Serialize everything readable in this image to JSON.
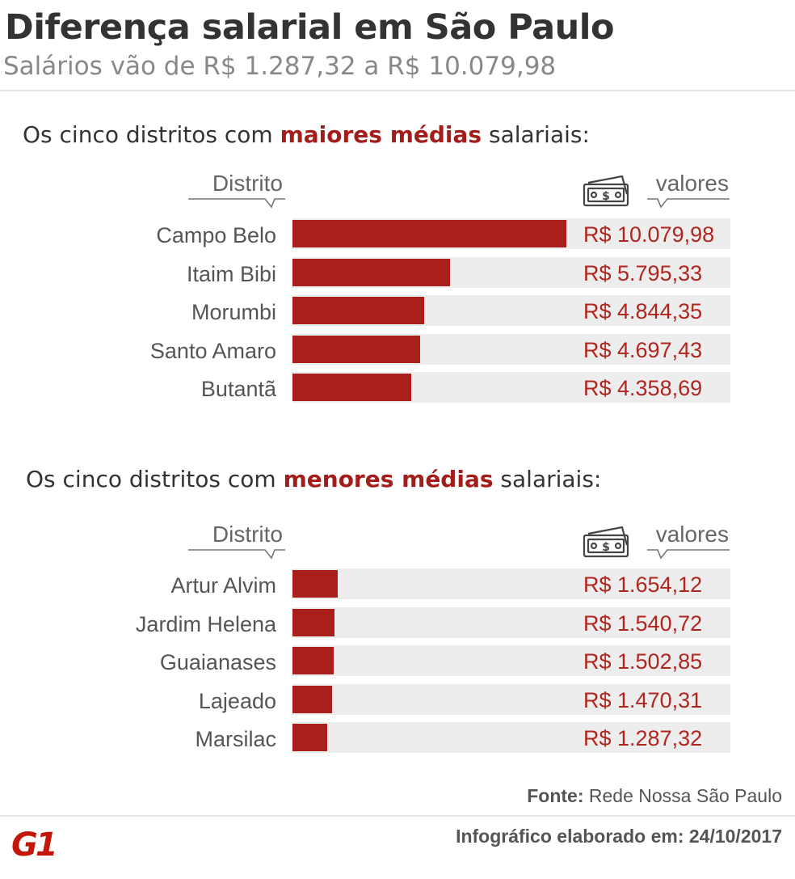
{
  "header": {
    "title": "Diferença salarial em São Paulo",
    "subtitle": "Salários vão de R$ 1.287,32 a R$ 10.079,98"
  },
  "colors": {
    "accent": "#a81f1b",
    "row_background": "#ededed",
    "value_text": "#b0261f"
  },
  "chart_data": [
    {
      "type": "bar",
      "orientation": "horizontal",
      "title_prefix": "Os cinco distritos com",
      "title_highlight": "maiores médias",
      "title_suffix": "salariais:",
      "category_header": "Distrito",
      "value_header": "valores",
      "value_header_icon": "money-bill-icon",
      "xlim": [
        0,
        10079.98
      ],
      "categories": [
        "Campo Belo",
        "Itaim Bibi",
        "Morumbi",
        "Santo Amaro",
        "Butantã"
      ],
      "values": [
        10079.98,
        5795.33,
        4844.35,
        4697.43,
        4358.69
      ],
      "value_labels": [
        "R$ 10.079,98",
        "R$ 5.795,33",
        "R$ 4.844,35",
        "R$ 4.697,43",
        "R$ 4.358,69"
      ]
    },
    {
      "type": "bar",
      "orientation": "horizontal",
      "title_prefix": "Os cinco distritos com",
      "title_highlight": "menores médias",
      "title_suffix": "salariais:",
      "category_header": "Distrito",
      "value_header": "valores",
      "value_header_icon": "money-bill-icon",
      "xlim": [
        0,
        10079.98
      ],
      "categories": [
        "Artur Alvim",
        "Jardim Helena",
        "Guaianases",
        "Lajeado",
        "Marsilac"
      ],
      "values": [
        1654.12,
        1540.72,
        1502.85,
        1470.31,
        1287.32
      ],
      "value_labels": [
        "R$ 1.654,12",
        "R$ 1.540,72",
        "R$ 1.502,85",
        "R$ 1.470,31",
        "R$ 1.287,32"
      ]
    }
  ],
  "footer": {
    "source_label": "Fonte:",
    "source_text": "Rede Nossa São Paulo",
    "credit": "Infográfico elaborado em: 24/10/2017",
    "logo_text": "G1"
  }
}
